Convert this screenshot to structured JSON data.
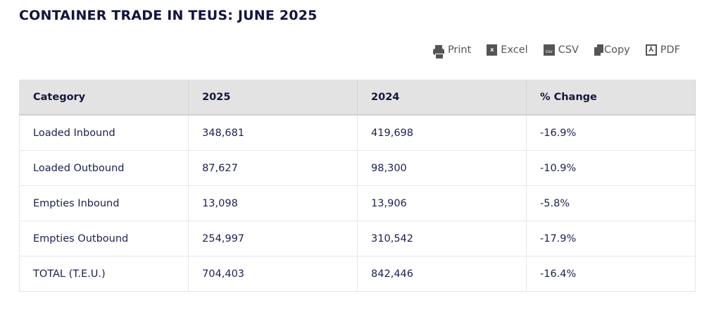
{
  "title": "CONTAINER TRADE IN TEUS: JUNE 2025",
  "toolbar": [
    {
      "label": "Print",
      "icon": "print-icon"
    },
    {
      "label": "Excel",
      "icon": "excel-icon"
    },
    {
      "label": "CSV",
      "icon": "csv-icon"
    },
    {
      "label": "Copy",
      "icon": "copy-icon"
    },
    {
      "label": "PDF",
      "icon": "pdf-icon"
    }
  ],
  "table": {
    "headers": [
      "Category",
      "2025",
      "2024",
      "% Change"
    ],
    "rows": [
      [
        "Loaded Inbound",
        "348,681",
        "419,698",
        "-16.9%"
      ],
      [
        "Loaded Outbound",
        "87,627",
        "98,300",
        "-10.9%"
      ],
      [
        "Empties Inbound",
        "13,098",
        "13,906",
        "-5.8%"
      ],
      [
        "Empties Outbound",
        "254,997",
        "310,542",
        "-17.9%"
      ],
      [
        "TOTAL (T.E.U.)",
        "704,403",
        "842,446",
        "-16.4%"
      ]
    ]
  }
}
